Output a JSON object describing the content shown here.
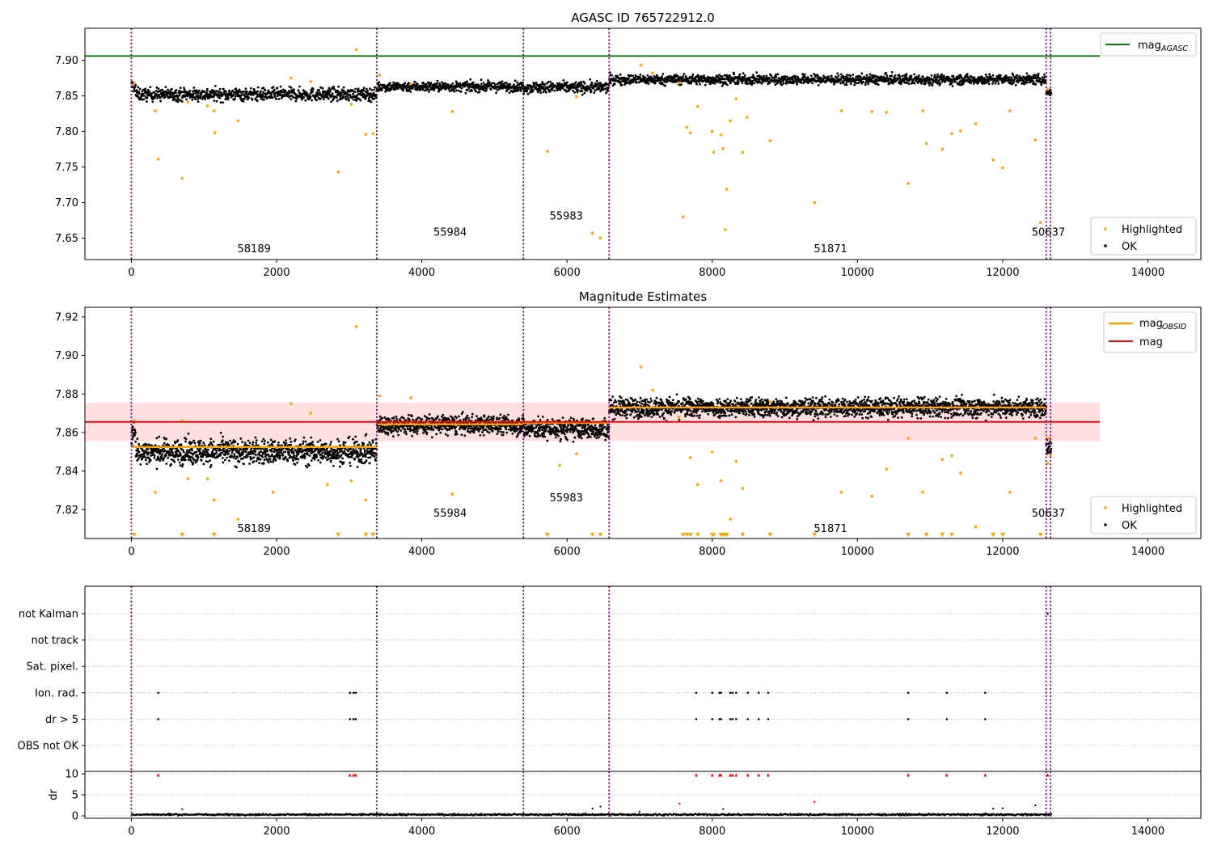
{
  "chart_data": [
    {
      "type": "scatter",
      "title": "AGASC ID 765722912.0",
      "xlabel": "",
      "ylabel": "",
      "xlim": [
        -640,
        14730
      ],
      "ylim": [
        7.62,
        7.945
      ],
      "xticks": [
        0,
        2000,
        4000,
        6000,
        8000,
        10000,
        12000,
        14000
      ],
      "yticks": [
        7.65,
        7.7,
        7.75,
        7.8,
        7.85,
        7.9
      ],
      "ytick_format": 2,
      "grid": false,
      "vlines": [
        0,
        3380,
        5400,
        6580,
        12600,
        12660
      ],
      "hline": {
        "name": "mag_AGASC",
        "y": 7.906,
        "x": [
          -640,
          13340
        ],
        "color": "#008000"
      },
      "obsid_labels": [
        {
          "text": "58189",
          "x": 1690,
          "y": 7.635
        },
        {
          "text": "55984",
          "x": 4390,
          "y": 7.658
        },
        {
          "text": "55983",
          "x": 5990,
          "y": 7.681
        },
        {
          "text": "51871",
          "x": 9630,
          "y": 7.635
        },
        {
          "text": "50637",
          "x": 12630,
          "y": 7.658
        }
      ],
      "ok_segments": [
        {
          "x": [
            0,
            3380
          ],
          "center": 7.852,
          "spread": 0.009,
          "start_jump": 0.012
        },
        {
          "x": [
            3380,
            5400
          ],
          "center": 7.863,
          "spread": 0.007
        },
        {
          "x": [
            5400,
            6580
          ],
          "center": 7.862,
          "spread": 0.008
        },
        {
          "x": [
            6580,
            12600
          ],
          "center": 7.873,
          "spread": 0.007
        },
        {
          "x": [
            12600,
            12670
          ],
          "center": 7.855,
          "spread": 0.006
        }
      ],
      "highlighted": [
        [
          40,
          7.868
        ],
        [
          330,
          7.829
        ],
        [
          370,
          7.761
        ],
        [
          700,
          7.734
        ],
        [
          780,
          7.841
        ],
        [
          1050,
          7.836
        ],
        [
          1140,
          7.829
        ],
        [
          1150,
          7.798
        ],
        [
          1470,
          7.815
        ],
        [
          2200,
          7.875
        ],
        [
          2470,
          7.87
        ],
        [
          2850,
          7.743
        ],
        [
          3030,
          7.838
        ],
        [
          3100,
          7.915
        ],
        [
          3230,
          7.796
        ],
        [
          3330,
          7.797
        ],
        [
          3420,
          7.879
        ],
        [
          3850,
          7.867
        ],
        [
          4420,
          7.828
        ],
        [
          5730,
          7.772
        ],
        [
          6130,
          7.849
        ],
        [
          6350,
          7.657
        ],
        [
          6460,
          7.65
        ],
        [
          7020,
          7.893
        ],
        [
          7180,
          7.882
        ],
        [
          7540,
          7.868
        ],
        [
          7600,
          7.68
        ],
        [
          7650,
          7.806
        ],
        [
          7700,
          7.798
        ],
        [
          7800,
          7.835
        ],
        [
          8000,
          7.8
        ],
        [
          8020,
          7.771
        ],
        [
          8120,
          7.795
        ],
        [
          8150,
          7.776
        ],
        [
          8200,
          7.719
        ],
        [
          8180,
          7.662
        ],
        [
          8250,
          7.815
        ],
        [
          8330,
          7.846
        ],
        [
          8420,
          7.771
        ],
        [
          8480,
          7.82
        ],
        [
          8800,
          7.787
        ],
        [
          9410,
          7.7
        ],
        [
          9780,
          7.829
        ],
        [
          10200,
          7.828
        ],
        [
          10400,
          7.827
        ],
        [
          10700,
          7.727
        ],
        [
          10900,
          7.829
        ],
        [
          10950,
          7.783
        ],
        [
          11170,
          7.775
        ],
        [
          11300,
          7.797
        ],
        [
          11420,
          7.801
        ],
        [
          11630,
          7.811
        ],
        [
          11870,
          7.76
        ],
        [
          12000,
          7.749
        ],
        [
          12100,
          7.829
        ],
        [
          12450,
          7.788
        ],
        [
          12520,
          7.672
        ],
        [
          12620,
          7.859
        ]
      ],
      "series": [
        {
          "name": "Highlighted",
          "color": "#ffa500"
        },
        {
          "name": "OK",
          "color": "#000000"
        }
      ],
      "legend_upper": {
        "position": "top-right",
        "entries": [
          {
            "label": "mag",
            "sub": "AGASC",
            "color": "#008000"
          }
        ]
      },
      "legend_lower": {
        "position": "bottom-right",
        "entries": [
          "Highlighted",
          "OK"
        ]
      }
    },
    {
      "type": "scatter",
      "title": "Magnitude Estimates",
      "xlabel": "",
      "ylabel": "",
      "xlim": [
        -640,
        14730
      ],
      "ylim": [
        7.805,
        7.925
      ],
      "xticks": [
        0,
        2000,
        4000,
        6000,
        8000,
        10000,
        12000,
        14000
      ],
      "yticks": [
        7.82,
        7.84,
        7.86,
        7.88,
        7.9,
        7.92
      ],
      "ytick_format": 2,
      "grid": false,
      "vlines": [
        0,
        3380,
        5400,
        6580,
        12600,
        12660
      ],
      "mag_line": {
        "name": "mag",
        "y": 7.8655,
        "x": [
          -640,
          13340
        ],
        "color": "#ff0000"
      },
      "mag_band": {
        "y": [
          7.8555,
          7.8755
        ],
        "x": [
          -640,
          13340
        ],
        "color": "#ffd6d6"
      },
      "obsid_means": [
        {
          "x": [
            0,
            3380
          ],
          "y": 7.8525
        },
        {
          "x": [
            3380,
            5400
          ],
          "y": 7.8643
        },
        {
          "x": [
            5400,
            6580
          ],
          "y": 7.865
        },
        {
          "x": [
            6580,
            12600
          ],
          "y": 7.873
        },
        {
          "x": [
            12600,
            12670
          ],
          "y": 7.857
        }
      ],
      "obsid_labels": [
        {
          "text": "58189",
          "x": 1690,
          "y": 7.81
        },
        {
          "text": "55984",
          "x": 4390,
          "y": 7.818
        },
        {
          "text": "55983",
          "x": 5990,
          "y": 7.826
        },
        {
          "text": "51871",
          "x": 9630,
          "y": 7.81
        },
        {
          "text": "50637",
          "x": 12630,
          "y": 7.818
        }
      ],
      "ok_segments": [
        {
          "x": [
            0,
            3380
          ],
          "center": 7.85,
          "spread": 0.0065,
          "start_jump": 0.009
        },
        {
          "x": [
            3380,
            5400
          ],
          "center": 7.864,
          "spread": 0.005
        },
        {
          "x": [
            5400,
            6580
          ],
          "center": 7.862,
          "spread": 0.0055
        },
        {
          "x": [
            6580,
            12600
          ],
          "center": 7.873,
          "spread": 0.005
        },
        {
          "x": [
            12600,
            12670
          ],
          "center": 7.852,
          "spread": 0.004
        }
      ],
      "highlighted": [
        [
          40,
          7.866
        ],
        [
          330,
          7.829
        ],
        [
          700,
          7.866
        ],
        [
          780,
          7.836
        ],
        [
          1050,
          7.836
        ],
        [
          1140,
          7.825
        ],
        [
          1470,
          7.815
        ],
        [
          1950,
          7.829
        ],
        [
          2200,
          7.875
        ],
        [
          2470,
          7.87
        ],
        [
          2700,
          7.833
        ],
        [
          3030,
          7.835
        ],
        [
          3100,
          7.915
        ],
        [
          3230,
          7.825
        ],
        [
          3420,
          7.879
        ],
        [
          3850,
          7.878
        ],
        [
          4420,
          7.828
        ],
        [
          5900,
          7.843
        ],
        [
          6130,
          7.849
        ],
        [
          7020,
          7.894
        ],
        [
          7180,
          7.882
        ],
        [
          7540,
          7.868
        ],
        [
          7700,
          7.847
        ],
        [
          7800,
          7.833
        ],
        [
          8000,
          7.85
        ],
        [
          8120,
          7.835
        ],
        [
          8250,
          7.815
        ],
        [
          8330,
          7.845
        ],
        [
          8420,
          7.831
        ],
        [
          8800,
          7.876
        ],
        [
          9780,
          7.829
        ],
        [
          10200,
          7.827
        ],
        [
          10400,
          7.841
        ],
        [
          10700,
          7.857
        ],
        [
          10900,
          7.829
        ],
        [
          11170,
          7.846
        ],
        [
          11300,
          7.848
        ],
        [
          11420,
          7.839
        ],
        [
          11630,
          7.811
        ],
        [
          12100,
          7.829
        ],
        [
          12450,
          7.857
        ],
        [
          12620,
          7.844
        ],
        [
          12660,
          7.848
        ]
      ],
      "clipped_low_x": [
        40,
        700,
        1140,
        2850,
        3230,
        3330,
        5730,
        6350,
        6460,
        7600,
        7650,
        7700,
        7800,
        8000,
        8020,
        8120,
        8150,
        8180,
        8200,
        8420,
        8800,
        9410,
        10700,
        10950,
        11170,
        11300,
        11870,
        12000,
        12520
      ],
      "series": [
        {
          "name": "Highlighted",
          "color": "#ffa500"
        },
        {
          "name": "OK",
          "color": "#000000"
        }
      ],
      "legend_upper": {
        "position": "top-right",
        "entries": [
          {
            "label": "mag",
            "sub": "OBSID",
            "color": "#ffa500"
          },
          {
            "label": "mag",
            "color": "#ff0000"
          }
        ]
      },
      "legend_lower": {
        "position": "bottom-right",
        "entries": [
          "Highlighted",
          "OK"
        ]
      }
    },
    {
      "type": "scatter",
      "title": "",
      "xlabel": "",
      "ylabel": "",
      "xlim": [
        -640,
        14730
      ],
      "grid": true,
      "vlines": [
        0,
        3380,
        5400,
        6580,
        12600,
        12660
      ],
      "flag_categories": [
        "not Kalman",
        "not track",
        "Sat. pixel.",
        "Ion. rad.",
        "dr > 5",
        "OBS not OK"
      ],
      "flags": {
        "not Kalman": [
          12620
        ],
        "not track": [],
        "Sat. pixel.": [],
        "Ion. rad.": [
          370,
          3010,
          3060,
          3090,
          7780,
          8000,
          8100,
          8120,
          8250,
          8280,
          8330,
          8490,
          8640,
          8770,
          10700,
          11230,
          11760
        ],
        "dr > 5": [
          370,
          3010,
          3060,
          3090,
          7780,
          8000,
          8100,
          8120,
          8250,
          8280,
          8330,
          8490,
          8640,
          8770,
          10700,
          11230,
          11760
        ],
        "OBS not OK": []
      }
    },
    {
      "type": "scatter",
      "title": "",
      "xlabel": "",
      "ylabel": "dr",
      "xlim": [
        -640,
        14730
      ],
      "ylim": [
        -0.5,
        10.5
      ],
      "yticks": [
        0,
        5,
        10
      ],
      "ytick_format": 0,
      "grid": true,
      "vlines": [
        0,
        3380,
        5400,
        6580,
        12600,
        12660
      ],
      "base_dr": {
        "x": [
          0,
          12670
        ],
        "center": 0.3,
        "spread": 0.25
      },
      "red_points": [
        [
          370,
          9.7
        ],
        [
          3010,
          9.7
        ],
        [
          3060,
          9.7
        ],
        [
          3090,
          9.7
        ],
        [
          7550,
          2.9
        ],
        [
          7780,
          9.7
        ],
        [
          8000,
          9.7
        ],
        [
          8100,
          9.7
        ],
        [
          8120,
          9.7
        ],
        [
          8250,
          9.7
        ],
        [
          8280,
          9.7
        ],
        [
          8330,
          9.7
        ],
        [
          8490,
          9.7
        ],
        [
          8640,
          9.7
        ],
        [
          8770,
          9.7
        ],
        [
          9410,
          3.3
        ],
        [
          10700,
          9.7
        ],
        [
          11230,
          9.7
        ],
        [
          11760,
          9.7
        ],
        [
          12620,
          9.7
        ]
      ],
      "black_outliers": [
        [
          700,
          1.6
        ],
        [
          6350,
          1.7
        ],
        [
          6460,
          2.2
        ],
        [
          7000,
          1.0
        ],
        [
          8150,
          1.6
        ],
        [
          11870,
          1.7
        ],
        [
          12000,
          1.8
        ],
        [
          12450,
          2.5
        ]
      ]
    }
  ]
}
